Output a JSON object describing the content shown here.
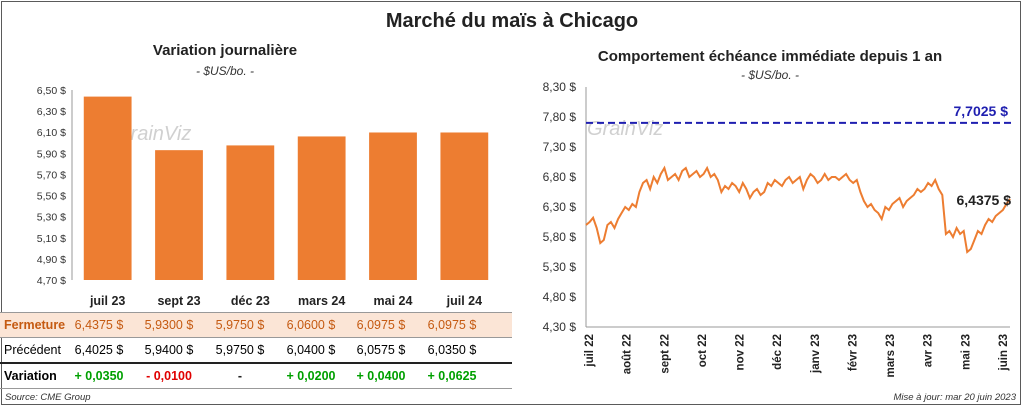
{
  "title": "Marché du maïs à Chicago",
  "left": {
    "subtitle": "Variation  journalière",
    "unit": "- $US/bo. -",
    "chart_data": {
      "type": "bar",
      "categories": [
        "juil 23",
        "sept 23",
        "déc 23",
        "mars 24",
        "mai 24",
        "juil 24"
      ],
      "values": [
        6.4375,
        5.93,
        5.975,
        6.06,
        6.0975,
        6.0975
      ],
      "ylim": [
        4.7,
        6.5
      ],
      "yticks": [
        "6,50 $",
        "6,30 $",
        "6,10 $",
        "5,90 $",
        "5,70 $",
        "5,50 $",
        "5,30 $",
        "5,10 $",
        "4,90 $",
        "4,70 $"
      ],
      "color": "#ED7D31"
    },
    "table": {
      "rows": [
        {
          "label": "Fermeture",
          "cells": [
            "6,4375  $",
            "5,9300  $",
            "5,9750  $",
            "6,0600  $",
            "6,0975  $",
            "6,0975  $"
          ]
        },
        {
          "label": "Précédent",
          "cells": [
            "6,4025  $",
            "5,9400  $",
            "5,9750  $",
            "6,0400  $",
            "6,0575  $",
            "6,0350  $"
          ]
        },
        {
          "label": "Variation",
          "cells": [
            "+ 0,0350",
            "- 0,0100",
            "-",
            "+ 0,0200",
            "+ 0,0400",
            "+ 0,0625"
          ]
        }
      ],
      "colors": {
        "fermeture_bg": "#FBE5D6",
        "fermeture_text": "#C55A11",
        "positive": "#00A000",
        "negative": "#E00000"
      }
    }
  },
  "right": {
    "subtitle": "Comportement  échéance immédiate depuis 1 an",
    "unit": "- $US/bo. -",
    "chart_data": {
      "type": "line",
      "ylim": [
        4.3,
        8.3
      ],
      "yticks": [
        "8,30 $",
        "7,80 $",
        "7,30 $",
        "6,80 $",
        "6,30 $",
        "5,80 $",
        "5,30 $",
        "4,80 $",
        "4,30 $"
      ],
      "xlabels": [
        "juil 22",
        "août 22",
        "sept 22",
        "oct 22",
        "nov 22",
        "déc 22",
        "janv 23",
        "févr 23",
        "mars 23",
        "avr 23",
        "mai 23",
        "juin 23"
      ],
      "reference_value": 7.7025,
      "reference_label": "7,7025 $",
      "last_label": "6,4375 $",
      "series": [
        6.0,
        6.05,
        6.12,
        5.95,
        5.7,
        5.75,
        6.0,
        6.05,
        5.95,
        6.1,
        6.2,
        6.3,
        6.25,
        6.35,
        6.3,
        6.55,
        6.7,
        6.75,
        6.6,
        6.8,
        6.7,
        6.85,
        6.95,
        6.75,
        6.8,
        6.85,
        6.75,
        6.9,
        6.95,
        6.8,
        6.85,
        6.9,
        6.8,
        6.85,
        6.95,
        6.8,
        6.85,
        6.75,
        6.55,
        6.65,
        6.6,
        6.7,
        6.65,
        6.55,
        6.7,
        6.6,
        6.45,
        6.55,
        6.6,
        6.5,
        6.55,
        6.7,
        6.65,
        6.75,
        6.7,
        6.65,
        6.75,
        6.8,
        6.7,
        6.75,
        6.8,
        6.6,
        6.75,
        6.85,
        6.8,
        6.7,
        6.75,
        6.85,
        6.75,
        6.8,
        6.8,
        6.75,
        6.8,
        6.85,
        6.75,
        6.7,
        6.75,
        6.55,
        6.4,
        6.3,
        6.35,
        6.25,
        6.2,
        6.1,
        6.3,
        6.25,
        6.35,
        6.4,
        6.45,
        6.3,
        6.4,
        6.45,
        6.5,
        6.6,
        6.55,
        6.6,
        6.7,
        6.65,
        6.75,
        6.6,
        6.5,
        5.85,
        5.9,
        5.8,
        5.95,
        5.85,
        5.9,
        5.55,
        5.6,
        5.75,
        5.9,
        5.85,
        6.0,
        6.1,
        6.05,
        6.15,
        6.2,
        6.25,
        6.35,
        6.4375
      ],
      "line_color": "#ED7D31",
      "reference_color": "#1F1FB0"
    }
  },
  "watermark": "GrainViz",
  "source": "Source: CME Group",
  "updated": "Mise à jour: mar 20 juin 2023"
}
